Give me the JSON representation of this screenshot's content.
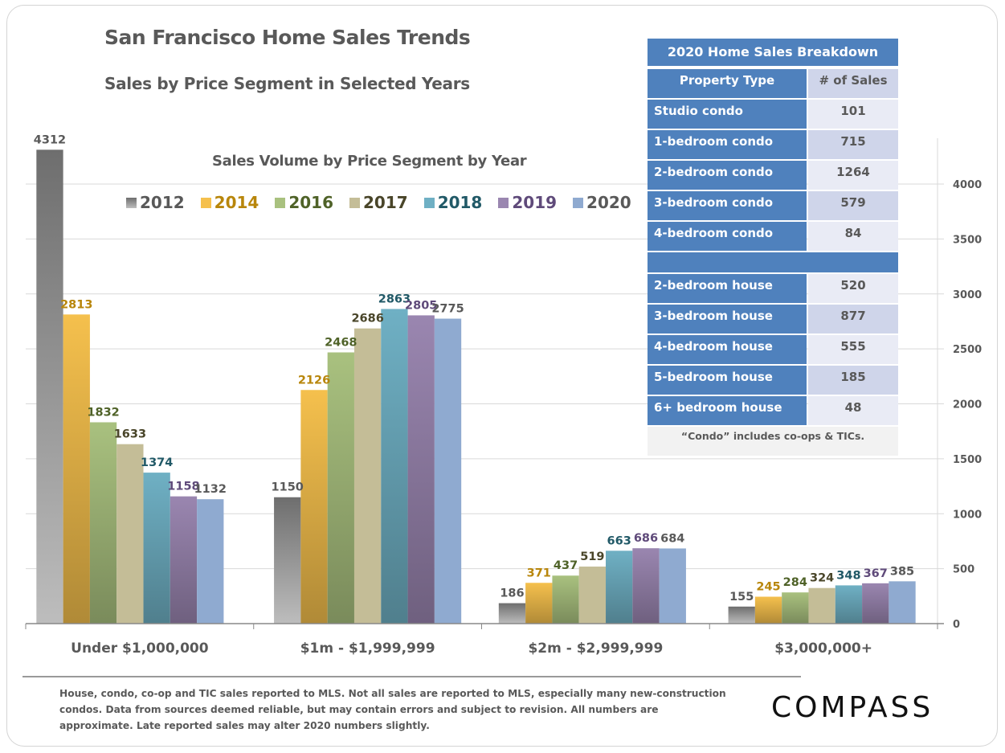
{
  "header": {
    "title": "San Francisco Home Sales Trends",
    "subtitle": "Sales by Price Segment in Selected Years"
  },
  "chart_data": {
    "type": "bar",
    "title": "Sales Volume by Price Segment by Year",
    "xlabel": "",
    "ylabel": "",
    "ylim": [
      0,
      4000
    ],
    "yticks": [
      0,
      500,
      1000,
      1500,
      2000,
      2500,
      3000,
      3500,
      4000
    ],
    "y_axis_side": "right",
    "grid": true,
    "legend_position": "top-left",
    "categories": [
      "Under $1,000,000",
      "$1m - $1,999,999",
      "$2m - $2,999,999",
      "$3,000,000+"
    ],
    "series": [
      {
        "name": "2012",
        "color": "#7f7f7f",
        "label_color": "#595959",
        "values": [
          4312,
          1150,
          186,
          155
        ]
      },
      {
        "name": "2014",
        "color": "#f5c04d",
        "label_color": "#b8860b",
        "values": [
          2813,
          2126,
          371,
          245
        ]
      },
      {
        "name": "2016",
        "color": "#a9c17f",
        "label_color": "#4f6228",
        "values": [
          1832,
          2468,
          437,
          284
        ]
      },
      {
        "name": "2017",
        "color": "#c4bd97",
        "label_color": "#494529",
        "values": [
          1633,
          2686,
          519,
          324
        ]
      },
      {
        "name": "2018",
        "color": "#6fb0c4",
        "label_color": "#215967",
        "values": [
          1374,
          2863,
          663,
          348
        ]
      },
      {
        "name": "2019",
        "color": "#9a86b0",
        "label_color": "#5f4a7a",
        "values": [
          1158,
          2805,
          686,
          367
        ]
      },
      {
        "name": "2020",
        "color": "#8faad0",
        "label_color": "#595959",
        "values": [
          1132,
          2775,
          684,
          385
        ]
      }
    ]
  },
  "breakdown": {
    "title": "2020 Home Sales Breakdown",
    "col_type": "Property Type",
    "col_count": "# of Sales",
    "condos": [
      {
        "type": "Studio condo",
        "count": "101"
      },
      {
        "type": "1-bedroom condo",
        "count": "715"
      },
      {
        "type": "2-bedroom condo",
        "count": "1264"
      },
      {
        "type": "3-bedroom condo",
        "count": "579"
      },
      {
        "type": "4-bedroom condo",
        "count": "84"
      }
    ],
    "houses": [
      {
        "type": "2-bedroom house",
        "count": "520"
      },
      {
        "type": "3-bedroom house",
        "count": "877"
      },
      {
        "type": "4-bedroom house",
        "count": "555"
      },
      {
        "type": "5-bedroom house",
        "count": "185"
      },
      {
        "type": "6+ bedroom house",
        "count": "48"
      }
    ],
    "note": "“Condo” includes co-ops & TICs."
  },
  "footer": {
    "note": "House, condo, co-op and TIC sales reported to MLS. Not all sales are reported to MLS, especially many new-construction condos. Data from sources deemed reliable, but may contain errors and subject to revision.  All numbers are approximate. Late reported sales may alter 2020 numbers slightly.",
    "logo": "COMPASS"
  }
}
